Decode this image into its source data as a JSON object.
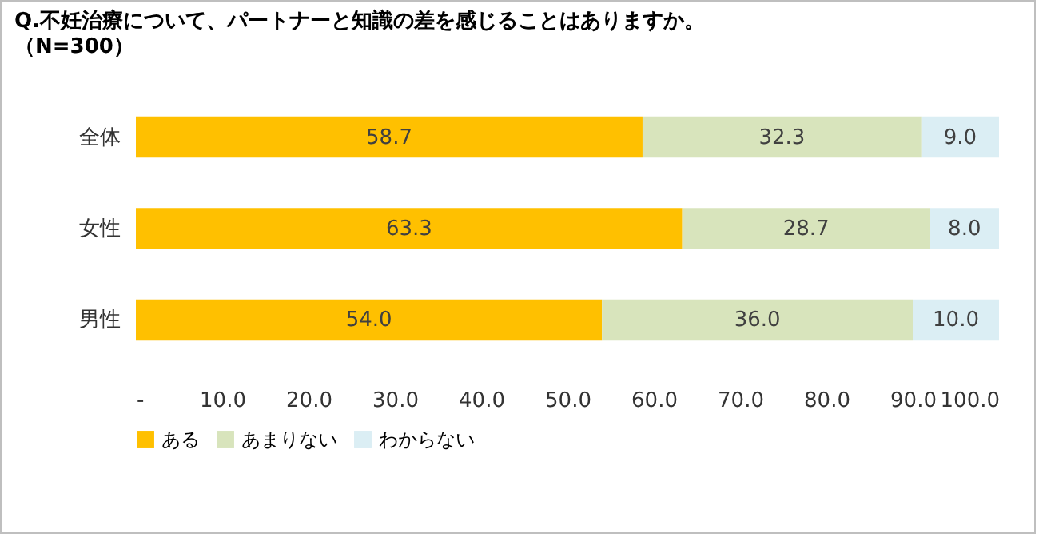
{
  "chart_data": {
    "type": "bar",
    "orientation": "horizontal",
    "stacked": true,
    "title": "Q.不妊治療について、パートナーと知識の差を感じることはありますか。",
    "subtitle": "（N=300）",
    "categories": [
      "全体",
      "女性",
      "男性"
    ],
    "series": [
      {
        "name": "ある",
        "color": "#ffc000",
        "values": [
          58.7,
          63.3,
          54.0
        ],
        "value_labels": [
          "58.7",
          "63.3",
          "54.0"
        ]
      },
      {
        "name": "あまりない",
        "color": "#d8e4bc",
        "values": [
          32.3,
          28.7,
          36.0
        ],
        "value_labels": [
          "32.3",
          "28.7",
          "36.0"
        ]
      },
      {
        "name": "わからない",
        "color": "#dbeef4",
        "values": [
          9.0,
          8.0,
          10.0
        ],
        "value_labels": [
          "9.0",
          "8.0",
          "10.0"
        ]
      }
    ],
    "xlim": [
      0,
      100
    ],
    "xticks": [
      {
        "value": 0,
        "label": "-"
      },
      {
        "value": 10,
        "label": "10.0"
      },
      {
        "value": 20,
        "label": "20.0"
      },
      {
        "value": 30,
        "label": "30.0"
      },
      {
        "value": 40,
        "label": "40.0"
      },
      {
        "value": 50,
        "label": "50.0"
      },
      {
        "value": 60,
        "label": "60.0"
      },
      {
        "value": 70,
        "label": "70.0"
      },
      {
        "value": 80,
        "label": "80.0"
      },
      {
        "value": 90,
        "label": "90.0"
      },
      {
        "value": 100,
        "label": "100.0"
      }
    ],
    "legend": "bottom",
    "grid": false
  }
}
